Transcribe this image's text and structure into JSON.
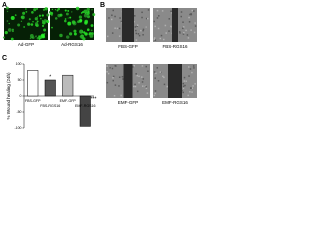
{
  "panels": {
    "a": {
      "label": "A",
      "images": [
        "Ad-GFP",
        "Ad-RGS16"
      ]
    },
    "b": {
      "label": "B",
      "images": [
        "FBS-GFP",
        "FBS-RGS16",
        "EMF-GFP",
        "EMF-RGS16"
      ]
    },
    "c": {
      "label": "C"
    }
  },
  "chart_data": {
    "type": "bar",
    "y_label": "% Wound healing (24h)",
    "categories": [
      "FBS-GFP",
      "FBS-RGS16",
      "EMF-GFP",
      "EMF-RGS16"
    ],
    "values": [
      80,
      50,
      65,
      -95
    ],
    "colors": [
      "#ffffff",
      "#555555",
      "#bbbbbb",
      "#444444"
    ],
    "annotations": [
      null,
      "*",
      null,
      "***"
    ],
    "ylim": [
      -100,
      100
    ],
    "yticks": [
      -100,
      -50,
      0,
      50,
      100
    ]
  }
}
